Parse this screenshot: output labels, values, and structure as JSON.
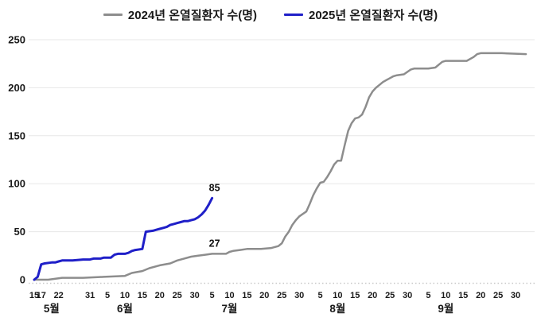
{
  "colors": {
    "background": "#ffffff",
    "text": "#1a1a1a",
    "gridline": "#e7e7e7",
    "axis_dotted": "#c9c9c9",
    "series_2024": "#8d8d8d",
    "series_2025": "#1f1fc8"
  },
  "legend": {
    "items": [
      {
        "label": "2024년 온열질환자 수(명)",
        "color": "#8d8d8d"
      },
      {
        "label": "2025년 온열질환자 수(명)",
        "color": "#1f1fc8"
      }
    ]
  },
  "chart_data": {
    "type": "line",
    "title": "",
    "xlabel": "",
    "ylabel": "",
    "x_unit": "days since May 15",
    "ylim": [
      0,
      250
    ],
    "yticks": [
      0,
      50,
      100,
      150,
      200,
      250
    ],
    "grid": "horizontal only, light gray; dotted baseline under x-axis",
    "legend_position": "top center",
    "xticks": [
      {
        "day": 0,
        "label": "15"
      },
      {
        "day": 2,
        "label": "17"
      },
      {
        "day": 7,
        "label": "22"
      },
      {
        "day": 16,
        "label": "31"
      },
      {
        "day": 21,
        "label": "5"
      },
      {
        "day": 26,
        "label": "10"
      },
      {
        "day": 31,
        "label": "15"
      },
      {
        "day": 36,
        "label": "20"
      },
      {
        "day": 41,
        "label": "25"
      },
      {
        "day": 46,
        "label": "30"
      },
      {
        "day": 51,
        "label": "5"
      },
      {
        "day": 56,
        "label": "10"
      },
      {
        "day": 61,
        "label": "15"
      },
      {
        "day": 66,
        "label": "20"
      },
      {
        "day": 71,
        "label": "25"
      },
      {
        "day": 76,
        "label": "30"
      },
      {
        "day": 82,
        "label": "5"
      },
      {
        "day": 87,
        "label": "10"
      },
      {
        "day": 92,
        "label": "15"
      },
      {
        "day": 97,
        "label": "20"
      },
      {
        "day": 102,
        "label": "25"
      },
      {
        "day": 107,
        "label": "30"
      },
      {
        "day": 113,
        "label": "5"
      },
      {
        "day": 118,
        "label": "10"
      },
      {
        "day": 123,
        "label": "15"
      },
      {
        "day": 128,
        "label": "20"
      },
      {
        "day": 133,
        "label": "25"
      },
      {
        "day": 138,
        "label": "30"
      }
    ],
    "month_labels": [
      {
        "day": 5,
        "label": "5월"
      },
      {
        "day": 26,
        "label": "6월"
      },
      {
        "day": 56,
        "label": "7월"
      },
      {
        "day": 87,
        "label": "8월"
      },
      {
        "day": 118,
        "label": "9월"
      }
    ],
    "series": [
      {
        "name": "2024년 온열질환자 수(명)",
        "color": "#8d8d8d",
        "stroke_width": 2.5,
        "points": [
          [
            0,
            0
          ],
          [
            4,
            0
          ],
          [
            8,
            2
          ],
          [
            14,
            2
          ],
          [
            20,
            3
          ],
          [
            26,
            4
          ],
          [
            28,
            7
          ],
          [
            31,
            9
          ],
          [
            33,
            12
          ],
          [
            36,
            15
          ],
          [
            39,
            17
          ],
          [
            41,
            20
          ],
          [
            43,
            22
          ],
          [
            45,
            24
          ],
          [
            47,
            25
          ],
          [
            49,
            26
          ],
          [
            51,
            27
          ],
          [
            55,
            27
          ],
          [
            56,
            29
          ],
          [
            57,
            30
          ],
          [
            59,
            31
          ],
          [
            61,
            32
          ],
          [
            65,
            32
          ],
          [
            68,
            33
          ],
          [
            70,
            35
          ],
          [
            71,
            38
          ],
          [
            72,
            45
          ],
          [
            73,
            50
          ],
          [
            74,
            57
          ],
          [
            75,
            62
          ],
          [
            76,
            66
          ],
          [
            78,
            71
          ],
          [
            79,
            79
          ],
          [
            80,
            88
          ],
          [
            81,
            95
          ],
          [
            82,
            101
          ],
          [
            83,
            102
          ],
          [
            84,
            107
          ],
          [
            85,
            113
          ],
          [
            86,
            120
          ],
          [
            87,
            124
          ],
          [
            88,
            124
          ],
          [
            89,
            140
          ],
          [
            90,
            155
          ],
          [
            91,
            163
          ],
          [
            92,
            168
          ],
          [
            93,
            169
          ],
          [
            94,
            172
          ],
          [
            95,
            180
          ],
          [
            96,
            190
          ],
          [
            97,
            196
          ],
          [
            98,
            200
          ],
          [
            99,
            203
          ],
          [
            100,
            206
          ],
          [
            101,
            208
          ],
          [
            102,
            210
          ],
          [
            103,
            212
          ],
          [
            104,
            213
          ],
          [
            106,
            214
          ],
          [
            108,
            219
          ],
          [
            109,
            220
          ],
          [
            113,
            220
          ],
          [
            115,
            221
          ],
          [
            117,
            227
          ],
          [
            118,
            228
          ],
          [
            124,
            228
          ],
          [
            126,
            232
          ],
          [
            127,
            235
          ],
          [
            128,
            236
          ],
          [
            134,
            236
          ],
          [
            141,
            235
          ]
        ]
      },
      {
        "name": "2025년 온열질환자 수(명)",
        "color": "#1f1fc8",
        "stroke_width": 3,
        "points": [
          [
            0,
            0
          ],
          [
            1,
            3
          ],
          [
            2,
            16
          ],
          [
            3,
            17
          ],
          [
            5,
            18
          ],
          [
            6,
            18
          ],
          [
            7,
            19
          ],
          [
            8,
            20
          ],
          [
            11,
            20
          ],
          [
            14,
            21
          ],
          [
            16,
            21
          ],
          [
            17,
            22
          ],
          [
            19,
            22
          ],
          [
            20,
            23
          ],
          [
            22,
            23
          ],
          [
            23,
            26
          ],
          [
            24,
            27
          ],
          [
            26,
            27
          ],
          [
            27,
            28
          ],
          [
            28,
            30
          ],
          [
            29,
            31
          ],
          [
            31,
            32
          ],
          [
            32,
            50
          ],
          [
            34,
            51
          ],
          [
            35,
            52
          ],
          [
            36,
            53
          ],
          [
            37,
            54
          ],
          [
            38,
            55
          ],
          [
            39,
            57
          ],
          [
            40,
            58
          ],
          [
            41,
            59
          ],
          [
            42,
            60
          ],
          [
            43,
            61
          ],
          [
            44,
            61
          ],
          [
            45,
            62
          ],
          [
            46,
            63
          ],
          [
            47,
            65
          ],
          [
            48,
            68
          ],
          [
            49,
            72
          ],
          [
            50,
            78
          ],
          [
            51,
            85
          ]
        ]
      }
    ],
    "annotations": [
      {
        "text": "85",
        "series": "2025년 온열질환자 수(명)",
        "day": 51,
        "value": 85
      },
      {
        "text": "27",
        "series": "2024년 온열질환자 수(명)",
        "day": 51,
        "value": 27
      }
    ]
  }
}
